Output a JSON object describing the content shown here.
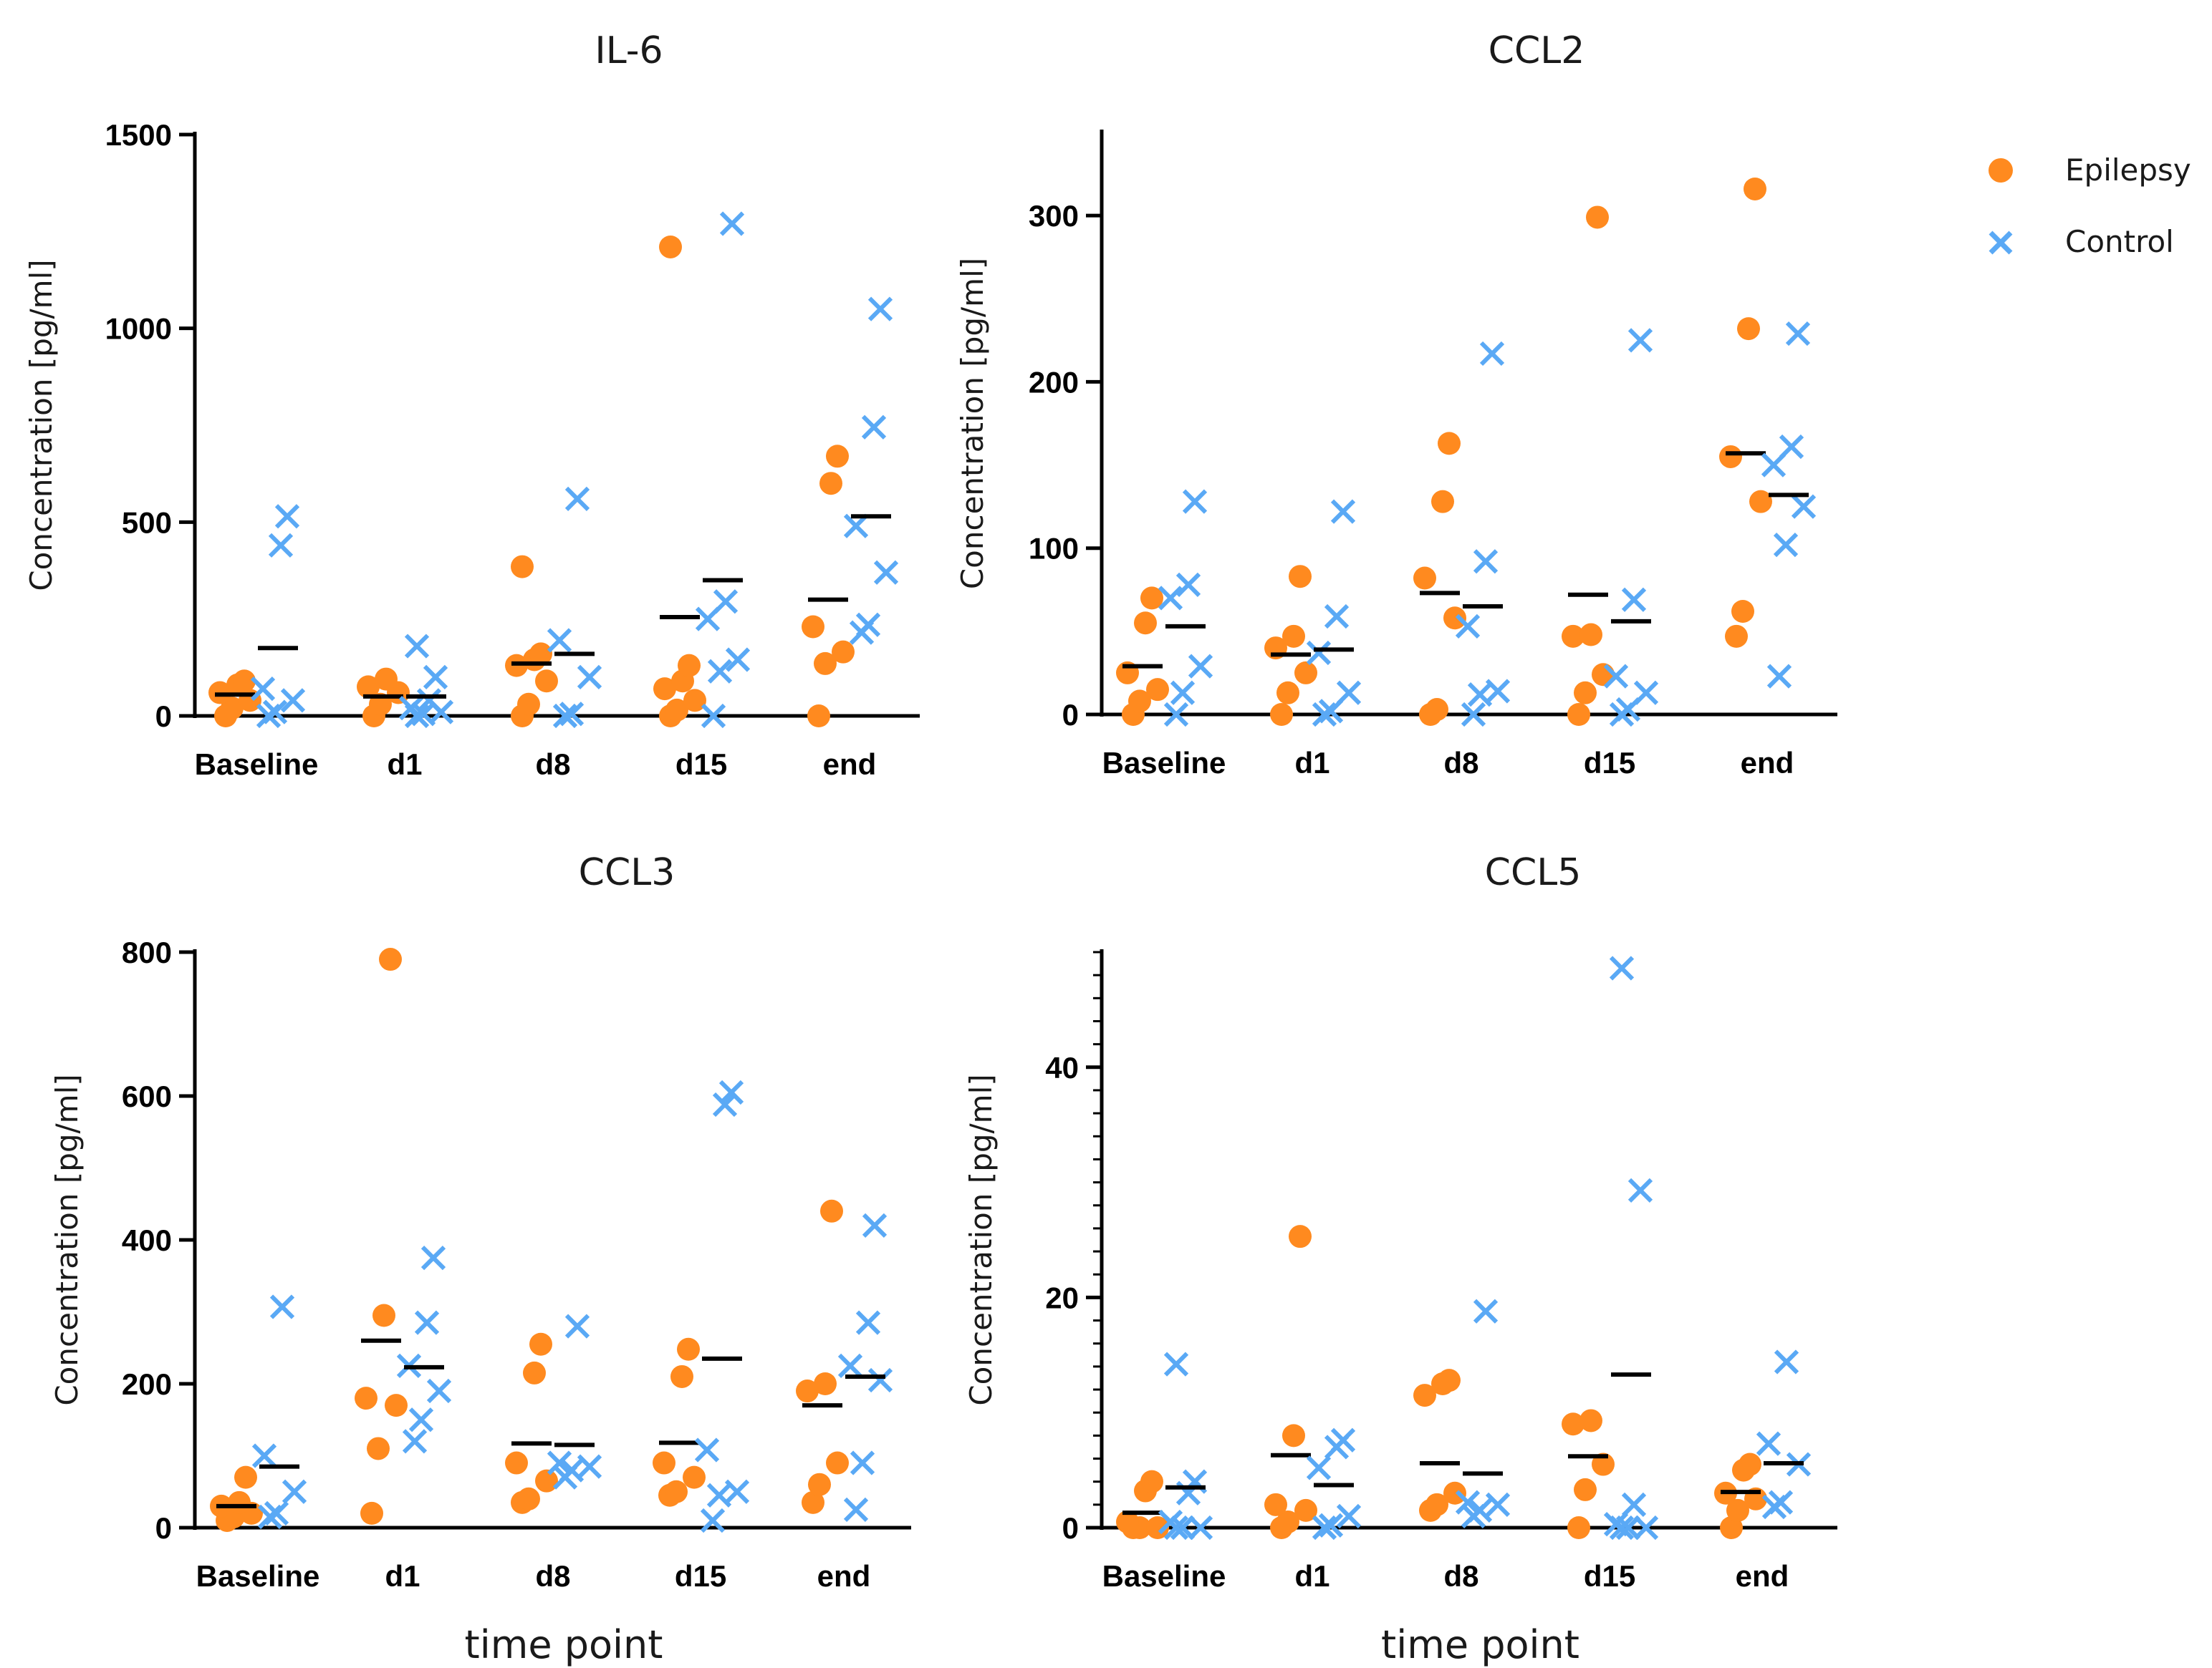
{
  "colors": {
    "epilepsy": "#FF8A1F",
    "control": "#5AA9F5",
    "axis": "#000000",
    "median": "#000000"
  },
  "legend": [
    {
      "name": "Epilepsy",
      "marker": "circle"
    },
    {
      "name": "Control",
      "marker": "cross"
    }
  ],
  "chart_data": [
    {
      "type": "scatter",
      "title": "IL-6",
      "xlabel": "",
      "ylabel": "Concentration [pg/ml]",
      "ylim": [
        0,
        1500
      ],
      "yticks": [
        0,
        500,
        1000,
        1500
      ],
      "yticklabels": [
        "0",
        "500",
        "1000",
        "1500"
      ],
      "minor_ticks": false,
      "categories": [
        "Baseline",
        "d1",
        "d8",
        "d15",
        "end"
      ],
      "series": [
        {
          "name": "Epilepsy",
          "values": [
            [
              0,
              20,
              40,
              60,
              80,
              90
            ],
            [
              0,
              30,
              60,
              75,
              95
            ],
            [
              0,
              30,
              90,
              130,
              145,
              160,
              385
            ],
            [
              0,
              15,
              40,
              70,
              90,
              130,
              1210
            ],
            [
              0,
              135,
              165,
              230,
              600,
              670
            ]
          ],
          "medians": [
            55,
            50,
            135,
            255,
            300
          ]
        },
        {
          "name": "Control",
          "values": [
            [
              0,
              10,
              40,
              70,
              440,
              515
            ],
            [
              0,
              5,
              10,
              20,
              40,
              100,
              180
            ],
            [
              0,
              5,
              100,
              195,
              560
            ],
            [
              0,
              115,
              145,
              250,
              295,
              1270
            ],
            [
              215,
              235,
              370,
              490,
              745,
              1050
            ]
          ],
          "medians": [
            175,
            50,
            160,
            350,
            515
          ]
        }
      ]
    },
    {
      "type": "scatter",
      "title": "CCL2",
      "xlabel": "",
      "ylabel": "Concentration [pg/ml]",
      "ylim": [
        0,
        350
      ],
      "yticks": [
        0,
        100,
        200,
        300
      ],
      "yticklabels": [
        "0",
        "100",
        "200",
        "300"
      ],
      "minor_ticks": false,
      "categories": [
        "Baseline",
        "d1",
        "d8",
        "d15",
        "end"
      ],
      "series": [
        {
          "name": "Epilepsy",
          "values": [
            [
              0,
              8,
              15,
              25,
              55,
              70
            ],
            [
              0,
              13,
              25,
              40,
              47,
              83
            ],
            [
              0,
              3,
              58,
              82,
              128,
              163
            ],
            [
              0,
              13,
              24,
              47,
              48,
              299
            ],
            [
              47,
              62,
              128,
              155,
              232,
              316
            ]
          ],
          "medians": [
            29,
            36,
            73,
            72,
            157
          ]
        },
        {
          "name": "Control",
          "values": [
            [
              0,
              13,
              29,
              70,
              78,
              128
            ],
            [
              0,
              2,
              13,
              37,
              59,
              122
            ],
            [
              0,
              12,
              14,
              53,
              92,
              217
            ],
            [
              0,
              3,
              13,
              23,
              69,
              225
            ],
            [
              23,
              102,
              125,
              150,
              161,
              229
            ]
          ],
          "medians": [
            53,
            39,
            65,
            56,
            132
          ]
        }
      ]
    },
    {
      "type": "scatter",
      "title": "CCL3",
      "xlabel": "time point",
      "ylabel": "Concentration [pg/ml]",
      "ylim": [
        0,
        800
      ],
      "yticks": [
        0,
        200,
        400,
        600,
        800
      ],
      "yticklabels": [
        "0",
        "200",
        "400",
        "600",
        "800"
      ],
      "minor_ticks": false,
      "categories": [
        "Baseline",
        "d1",
        "d8",
        "d15",
        "end"
      ],
      "series": [
        {
          "name": "Epilepsy",
          "values": [
            [
              10,
              15,
              20,
              30,
              35,
              70
            ],
            [
              20,
              110,
              170,
              180,
              295,
              790
            ],
            [
              35,
              40,
              65,
              90,
              215,
              255
            ],
            [
              45,
              50,
              70,
              90,
              210,
              248
            ],
            [
              35,
              60,
              90,
              190,
              200,
              440
            ]
          ],
          "medians": [
            30,
            260,
            117,
            118,
            170
          ]
        },
        {
          "name": "Control",
          "values": [
            [
              15,
              20,
              50,
              100,
              307
            ],
            [
              120,
              150,
              190,
              225,
              285,
              375
            ],
            [
              70,
              80,
              85,
              90,
              280
            ],
            [
              10,
              45,
              50,
              108,
              588,
              605
            ],
            [
              25,
              90,
              205,
              225,
              285,
              420
            ]
          ],
          "medians": [
            85,
            223,
            115,
            235,
            210
          ]
        }
      ]
    },
    {
      "type": "scatter",
      "title": "CCL5",
      "xlabel": "time point",
      "ylabel": "Concentration [pg/ml]",
      "ylim": [
        0,
        50
      ],
      "yticks": [
        0,
        20,
        40
      ],
      "yticklabels": [
        "0",
        "20",
        "40"
      ],
      "minor_ticks": true,
      "minor_step": 2,
      "categories": [
        "Baseline",
        "d1",
        "d8",
        "d15",
        "end"
      ],
      "series": [
        {
          "name": "Epilepsy",
          "values": [
            [
              0,
              0,
              0,
              0.5,
              3.2,
              4.0
            ],
            [
              0,
              0.5,
              1.5,
              2.0,
              8.0,
              25.3
            ],
            [
              1.5,
              2.0,
              3.0,
              11.5,
              12.5,
              12.8
            ],
            [
              0,
              3.3,
              5.5,
              9.0,
              9.3
            ],
            [
              0,
              1.5,
              2.5,
              3.0,
              5.0,
              5.5
            ]
          ],
          "medians": [
            1.3,
            6.3,
            5.6,
            6.2,
            3.1
          ]
        },
        {
          "name": "Control",
          "values": [
            [
              0,
              0,
              0,
              0.5,
              3.0,
              4.0,
              14.2
            ],
            [
              0,
              0.2,
              1.0,
              5.2,
              7.0,
              7.6
            ],
            [
              1.0,
              1.5,
              2.0,
              2.2,
              18.8
            ],
            [
              0,
              0,
              0,
              0.3,
              2.0,
              29.3,
              48.6
            ],
            [
              1.8,
              2.2,
              5.5,
              7.3,
              14.4
            ]
          ],
          "medians": [
            3.5,
            3.7,
            4.7,
            13.3,
            5.6
          ]
        }
      ]
    }
  ]
}
